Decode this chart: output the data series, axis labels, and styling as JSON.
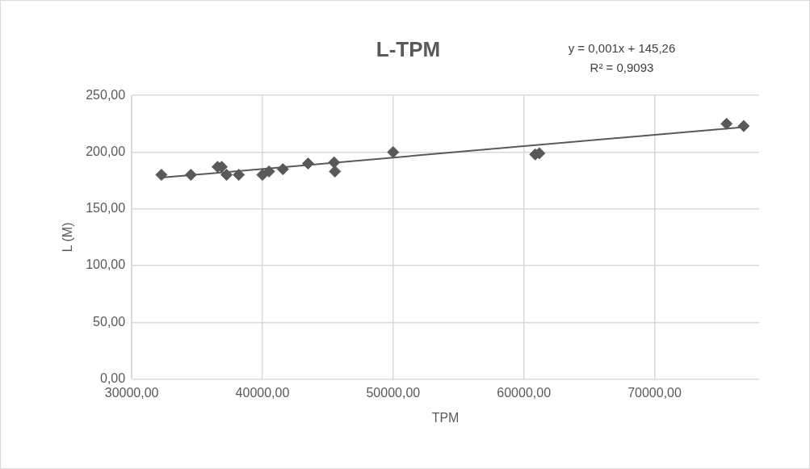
{
  "chart_data": {
    "type": "scatter",
    "title": "L-TPM",
    "xlabel": "TPM",
    "ylabel": "L (M)",
    "annotations": [
      "y = 0,001x + 145,26",
      "R² = 0,9093"
    ],
    "series": [
      {
        "color": "#595959",
        "x": [
          32270,
          34520,
          36570,
          36880,
          37260,
          38190,
          40000,
          40500,
          41560,
          43490,
          45480,
          45550,
          50000,
          60870,
          61180,
          75510,
          76820
        ],
        "values": [
          180,
          180,
          187,
          187,
          180,
          180,
          180,
          183,
          185,
          190,
          191,
          183,
          200,
          198,
          199,
          225,
          223
        ]
      },
      {
        "type": "line",
        "marker": "none",
        "color": "#595959",
        "x": [
          32270,
          76820
        ],
        "values": [
          177.5,
          222.1
        ]
      }
    ],
    "marker": "diamond",
    "grid": true,
    "legend": false,
    "xlim": [
      30000,
      78000
    ],
    "xticks": [
      {
        "value": 30000,
        "label": "30000,00"
      },
      {
        "value": 40000,
        "label": "40000,00"
      },
      {
        "value": 50000,
        "label": "50000,00"
      },
      {
        "value": 60000,
        "label": "60000,00"
      },
      {
        "value": 70000,
        "label": "70000,00"
      }
    ],
    "ylim": [
      0,
      250
    ],
    "yticks": [
      {
        "value": 0,
        "label": "0,00"
      },
      {
        "value": 50,
        "label": "50,00"
      },
      {
        "value": 100,
        "label": "100,00"
      },
      {
        "value": 150,
        "label": "150,00"
      },
      {
        "value": 200,
        "label": "200,00"
      },
      {
        "value": 250,
        "label": "250,00"
      }
    ]
  }
}
